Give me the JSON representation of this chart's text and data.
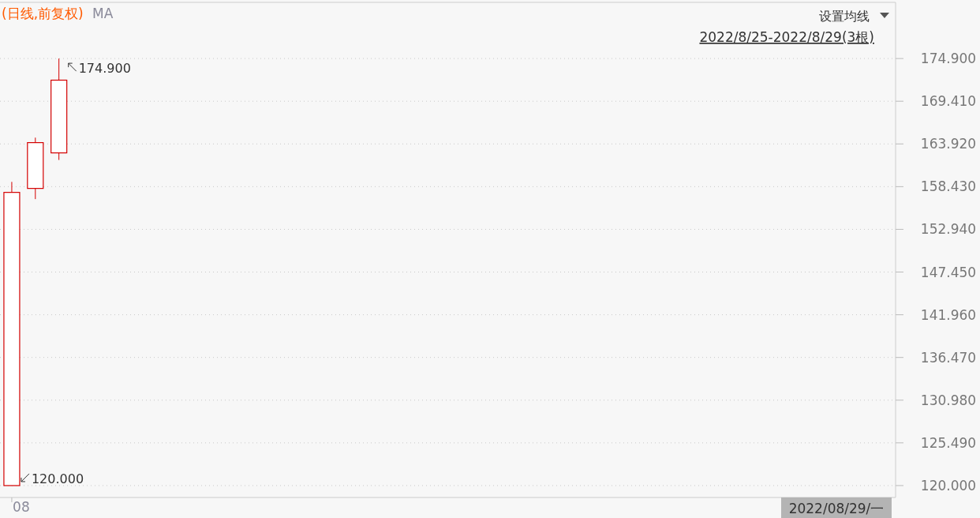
{
  "chart_data": {
    "type": "candlestick",
    "title": "(日线,前复权)",
    "subtitle": "MA",
    "categories": [
      "08",
      null,
      null,
      null,
      null,
      null,
      null,
      null,
      null,
      null,
      null,
      null,
      null,
      null,
      null,
      null,
      null,
      null,
      null,
      null,
      null,
      null,
      null,
      null,
      null,
      null,
      null,
      null,
      null,
      null,
      null,
      null,
      null,
      null,
      null,
      null,
      null,
      null
    ],
    "ohlc": [
      [
        120.0,
        159.04,
        120.0,
        157.69
      ],
      [
        158.2,
        164.73,
        156.83,
        164.09
      ],
      [
        162.77,
        174.9,
        161.86,
        172.12
      ],
      null,
      null,
      null,
      null,
      null,
      null,
      null,
      null,
      null,
      null,
      null,
      null,
      null,
      null,
      null,
      null,
      null,
      null,
      null,
      null,
      null,
      null,
      null,
      null,
      null,
      null,
      null,
      null,
      null,
      null,
      null,
      null,
      null,
      null,
      null
    ],
    "color": "#d40000",
    "ylim": [
      118.47,
      182.12
    ],
    "yticks": [
      {
        "value": 120.0,
        "label": "120.000"
      },
      {
        "value": 125.49,
        "label": "125.490"
      },
      {
        "value": 130.98,
        "label": "130.980"
      },
      {
        "value": 136.47,
        "label": "136.470"
      },
      {
        "value": 141.96,
        "label": "141.960"
      },
      {
        "value": 147.45,
        "label": "147.450"
      },
      {
        "value": 152.94,
        "label": "152.940"
      },
      {
        "value": 158.43,
        "label": "158.430"
      },
      {
        "value": 163.92,
        "label": "163.920"
      },
      {
        "value": 169.41,
        "label": "169.410"
      },
      {
        "value": 174.9,
        "label": "174.900"
      }
    ],
    "grid": "y",
    "annotations": [
      "设置均线",
      "2022/8/25-2022/8/29(3根)",
      "2022/08/29/一",
      "174.900",
      "120.000"
    ]
  }
}
